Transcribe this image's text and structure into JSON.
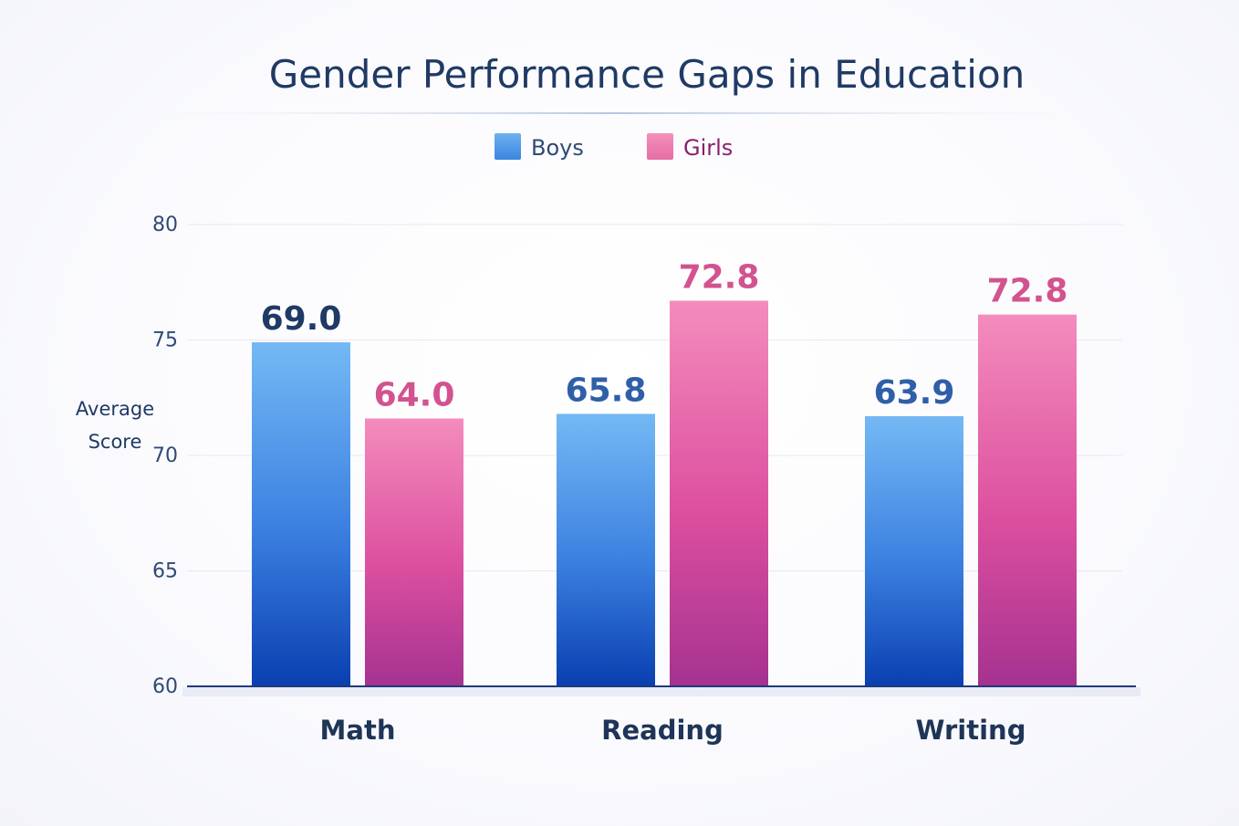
{
  "chart_data": {
    "type": "bar",
    "title": "Gender Performance Gaps in Education",
    "ylabel": "Average Score",
    "xlabel": "",
    "categories": [
      "Math",
      "Reading",
      "Writing"
    ],
    "series": [
      {
        "name": "Boys",
        "values": [
          69.0,
          65.8,
          63.9
        ],
        "labels": [
          "69.0",
          "65.8",
          "63.9"
        ],
        "color": "#3f7fe0"
      },
      {
        "name": "Girls",
        "values": [
          64.0,
          72.8,
          72.8
        ],
        "labels": [
          "64.0",
          "72.8",
          "72.8"
        ],
        "color": "#e0559e"
      }
    ],
    "bar_tops": [
      [
        74.9,
        71.8,
        71.7
      ],
      [
        71.6,
        76.7,
        76.1
      ]
    ],
    "ylim": [
      60,
      80
    ],
    "yticks": [
      "60",
      "65",
      "70",
      "75",
      "80"
    ],
    "grid": true,
    "legend": "top-center"
  },
  "colors": {
    "title": "#1f3a64",
    "boys_label": "#2f5fa8",
    "girls_label": "#d2538f",
    "boys_legend_text": "#2f4a76",
    "girls_legend_text": "#8a1f6e"
  }
}
